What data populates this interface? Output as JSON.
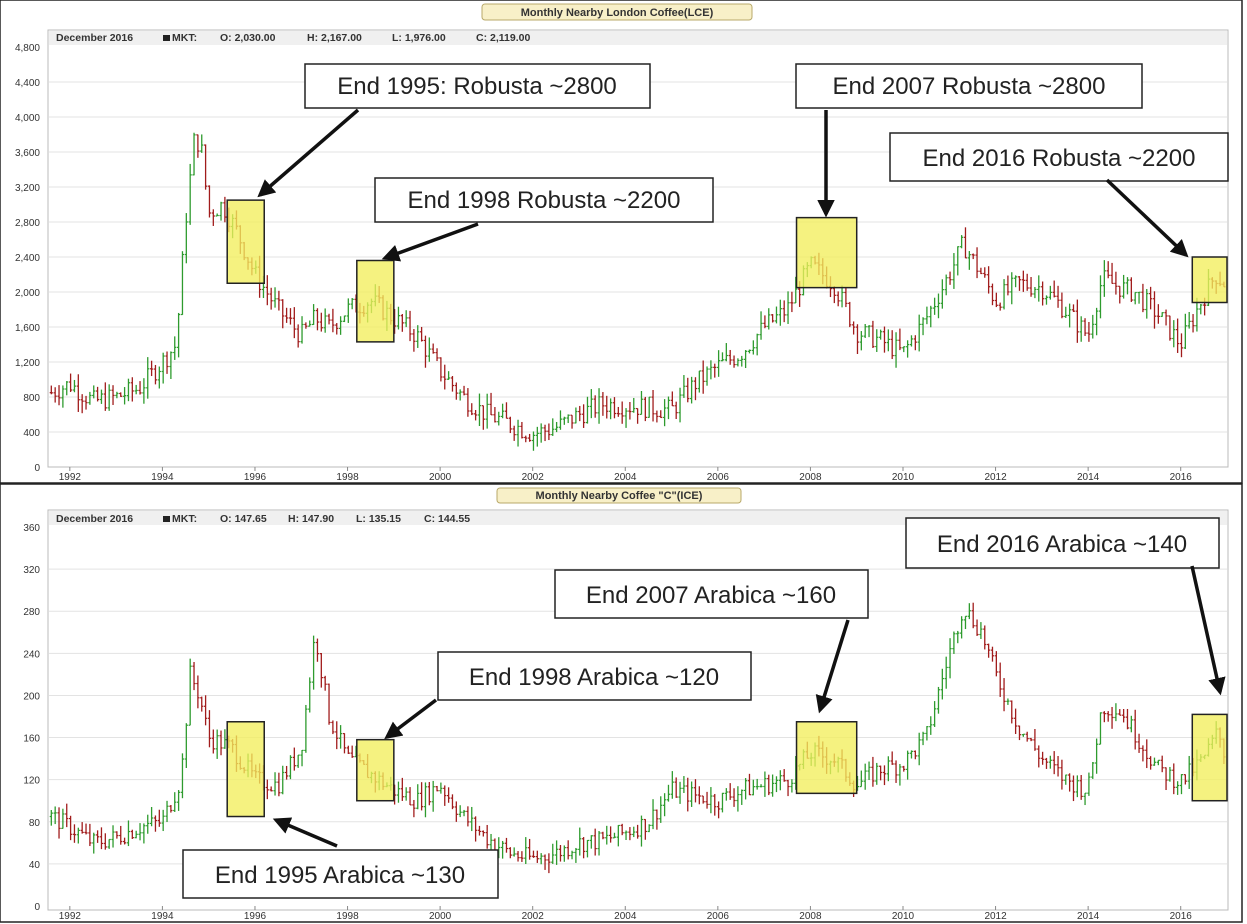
{
  "charts": [
    {
      "title": "Monthly Nearby London Coffee(LCE)",
      "ohlc": {
        "period": "December 2016",
        "mkt": "MKT:",
        "o": "O: 2,030.00",
        "h": "H: 2,167.00",
        "l": "L: 1,976.00",
        "c": "C: 2,119.00"
      },
      "annotations": [
        {
          "text": "End 1995: Robusta ~2800"
        },
        {
          "text": "End 1998 Robusta ~2200"
        },
        {
          "text": "End 2007 Robusta ~2800"
        },
        {
          "text": "End 2016 Robusta ~2200"
        }
      ]
    },
    {
      "title": "Monthly Nearby Coffee \"C\"(ICE)",
      "ohlc": {
        "period": "December 2016",
        "mkt": "MKT:",
        "o": "O: 147.65",
        "h": "H: 147.90",
        "l": "L: 135.15",
        "c": "C: 144.55"
      },
      "annotations": [
        {
          "text": "End 1995 Arabica ~130"
        },
        {
          "text": "End 1998 Arabica ~120"
        },
        {
          "text": "End 2007 Arabica ~160"
        },
        {
          "text": "End 2016 Arabica ~140"
        }
      ]
    }
  ],
  "colors": {
    "up": "#2e9b2e",
    "down": "#a11c1c",
    "highlight": "#f2ee5c",
    "grid": "#e3e3e3"
  },
  "chart_data": [
    {
      "type": "ohlc",
      "title": "Monthly Nearby London Coffee(LCE)",
      "x_ticks": [
        "1992",
        "1994",
        "1996",
        "1998",
        "2000",
        "2002",
        "2004",
        "2006",
        "2008",
        "2010",
        "2012",
        "2014",
        "2016"
      ],
      "y_ticks": [
        "0",
        "400",
        "800",
        "1,200",
        "1,600",
        "2,000",
        "2,400",
        "2,800",
        "3,200",
        "3,600",
        "4,000",
        "4,400",
        "4,800"
      ],
      "xlim": [
        1991.55,
        2017.0
      ],
      "ylim": [
        0,
        4800
      ],
      "highlights": [
        [
          1995.4,
          1996.2,
          2100,
          3050
        ],
        [
          1998.2,
          1999.0,
          1430,
          2360
        ],
        [
          2007.7,
          2009.0,
          2050,
          2850
        ],
        [
          2016.25,
          2017.0,
          1880,
          2400
        ]
      ],
      "series": [
        {
          "x": 1991.6,
          "y": 850
        },
        {
          "x": 1992.0,
          "y": 950
        },
        {
          "x": 1992.5,
          "y": 750
        },
        {
          "x": 1993.0,
          "y": 800
        },
        {
          "x": 1993.5,
          "y": 900
        },
        {
          "x": 1994.0,
          "y": 1200
        },
        {
          "x": 1994.3,
          "y": 1400
        },
        {
          "x": 1994.5,
          "y": 2800
        },
        {
          "x": 1994.7,
          "y": 3800
        },
        {
          "x": 1994.85,
          "y": 3600
        },
        {
          "x": 1995.0,
          "y": 2900
        },
        {
          "x": 1995.3,
          "y": 3000
        },
        {
          "x": 1995.6,
          "y": 2700
        },
        {
          "x": 1996.0,
          "y": 2200
        },
        {
          "x": 1996.5,
          "y": 1800
        },
        {
          "x": 1997.0,
          "y": 1500
        },
        {
          "x": 1997.3,
          "y": 1700
        },
        {
          "x": 1997.6,
          "y": 1600
        },
        {
          "x": 1998.0,
          "y": 1800
        },
        {
          "x": 1998.5,
          "y": 1900
        },
        {
          "x": 1999.0,
          "y": 1700
        },
        {
          "x": 1999.5,
          "y": 1500
        },
        {
          "x": 2000.0,
          "y": 1100
        },
        {
          "x": 2000.5,
          "y": 800
        },
        {
          "x": 2001.0,
          "y": 600
        },
        {
          "x": 2001.5,
          "y": 500
        },
        {
          "x": 2002.0,
          "y": 380
        },
        {
          "x": 2002.5,
          "y": 450
        },
        {
          "x": 2003.0,
          "y": 600
        },
        {
          "x": 2003.5,
          "y": 720
        },
        {
          "x": 2004.0,
          "y": 700
        },
        {
          "x": 2004.5,
          "y": 680
        },
        {
          "x": 2005.0,
          "y": 650
        },
        {
          "x": 2005.5,
          "y": 950
        },
        {
          "x": 2006.0,
          "y": 1150
        },
        {
          "x": 2006.5,
          "y": 1300
        },
        {
          "x": 2007.0,
          "y": 1600
        },
        {
          "x": 2007.5,
          "y": 1800
        },
        {
          "x": 2008.0,
          "y": 2300
        },
        {
          "x": 2008.5,
          "y": 2100
        },
        {
          "x": 2009.0,
          "y": 1550
        },
        {
          "x": 2009.5,
          "y": 1450
        },
        {
          "x": 2010.0,
          "y": 1300
        },
        {
          "x": 2010.5,
          "y": 1700
        },
        {
          "x": 2011.0,
          "y": 2200
        },
        {
          "x": 2011.3,
          "y": 2550
        },
        {
          "x": 2011.7,
          "y": 2200
        },
        {
          "x": 2012.0,
          "y": 1900
        },
        {
          "x": 2012.5,
          "y": 2100
        },
        {
          "x": 2013.0,
          "y": 2050
        },
        {
          "x": 2013.5,
          "y": 1800
        },
        {
          "x": 2014.0,
          "y": 1500
        },
        {
          "x": 2014.3,
          "y": 2150
        },
        {
          "x": 2014.7,
          "y": 2050
        },
        {
          "x": 2015.0,
          "y": 2000
        },
        {
          "x": 2015.5,
          "y": 1750
        },
        {
          "x": 2016.0,
          "y": 1400
        },
        {
          "x": 2016.4,
          "y": 1850
        },
        {
          "x": 2016.75,
          "y": 2200
        },
        {
          "x": 2016.95,
          "y": 2100
        }
      ]
    },
    {
      "type": "ohlc",
      "title": "Monthly Nearby Coffee \"C\"(ICE)",
      "x_ticks": [
        "1992",
        "1994",
        "1996",
        "1998",
        "2000",
        "2002",
        "2004",
        "2006",
        "2008",
        "2010",
        "2012",
        "2014",
        "2016"
      ],
      "y_ticks": [
        "0",
        "40",
        "80",
        "120",
        "160",
        "200",
        "240",
        "280",
        "320",
        "360"
      ],
      "xlim": [
        1991.55,
        2017.0
      ],
      "ylim": [
        0,
        360
      ],
      "highlights": [
        [
          1995.4,
          1996.2,
          85,
          175
        ],
        [
          1998.2,
          1999.0,
          100,
          158
        ],
        [
          2007.7,
          2009.0,
          107,
          175
        ],
        [
          2016.25,
          2017.0,
          100,
          182
        ]
      ],
      "series": [
        {
          "x": 1991.6,
          "y": 85
        },
        {
          "x": 1992.0,
          "y": 75
        },
        {
          "x": 1992.5,
          "y": 60
        },
        {
          "x": 1993.0,
          "y": 65
        },
        {
          "x": 1993.5,
          "y": 75
        },
        {
          "x": 1994.0,
          "y": 80
        },
        {
          "x": 1994.4,
          "y": 120
        },
        {
          "x": 1994.6,
          "y": 220
        },
        {
          "x": 1994.8,
          "y": 200
        },
        {
          "x": 1995.0,
          "y": 160
        },
        {
          "x": 1995.5,
          "y": 150
        },
        {
          "x": 1996.0,
          "y": 120
        },
        {
          "x": 1996.5,
          "y": 115
        },
        {
          "x": 1997.0,
          "y": 150
        },
        {
          "x": 1997.3,
          "y": 260
        },
        {
          "x": 1997.6,
          "y": 180
        },
        {
          "x": 1998.0,
          "y": 140
        },
        {
          "x": 1998.5,
          "y": 125
        },
        {
          "x": 1999.0,
          "y": 110
        },
        {
          "x": 1999.5,
          "y": 100
        },
        {
          "x": 2000.0,
          "y": 115
        },
        {
          "x": 2000.5,
          "y": 85
        },
        {
          "x": 2001.0,
          "y": 65
        },
        {
          "x": 2001.5,
          "y": 50
        },
        {
          "x": 2002.0,
          "y": 45
        },
        {
          "x": 2002.5,
          "y": 50
        },
        {
          "x": 2003.0,
          "y": 60
        },
        {
          "x": 2003.5,
          "y": 62
        },
        {
          "x": 2004.0,
          "y": 70
        },
        {
          "x": 2004.5,
          "y": 80
        },
        {
          "x": 2005.0,
          "y": 110
        },
        {
          "x": 2005.5,
          "y": 105
        },
        {
          "x": 2006.0,
          "y": 100
        },
        {
          "x": 2006.5,
          "y": 110
        },
        {
          "x": 2007.0,
          "y": 115
        },
        {
          "x": 2007.5,
          "y": 120
        },
        {
          "x": 2008.0,
          "y": 145
        },
        {
          "x": 2008.5,
          "y": 140
        },
        {
          "x": 2009.0,
          "y": 115
        },
        {
          "x": 2009.5,
          "y": 130
        },
        {
          "x": 2010.0,
          "y": 135
        },
        {
          "x": 2010.5,
          "y": 160
        },
        {
          "x": 2011.0,
          "y": 240
        },
        {
          "x": 2011.3,
          "y": 285
        },
        {
          "x": 2011.7,
          "y": 260
        },
        {
          "x": 2012.0,
          "y": 220
        },
        {
          "x": 2012.5,
          "y": 170
        },
        {
          "x": 2013.0,
          "y": 140
        },
        {
          "x": 2013.5,
          "y": 120
        },
        {
          "x": 2014.0,
          "y": 110
        },
        {
          "x": 2014.3,
          "y": 190
        },
        {
          "x": 2014.7,
          "y": 185
        },
        {
          "x": 2015.0,
          "y": 165
        },
        {
          "x": 2015.5,
          "y": 130
        },
        {
          "x": 2016.0,
          "y": 118
        },
        {
          "x": 2016.5,
          "y": 140
        },
        {
          "x": 2016.8,
          "y": 165
        },
        {
          "x": 2016.95,
          "y": 145
        }
      ]
    }
  ]
}
